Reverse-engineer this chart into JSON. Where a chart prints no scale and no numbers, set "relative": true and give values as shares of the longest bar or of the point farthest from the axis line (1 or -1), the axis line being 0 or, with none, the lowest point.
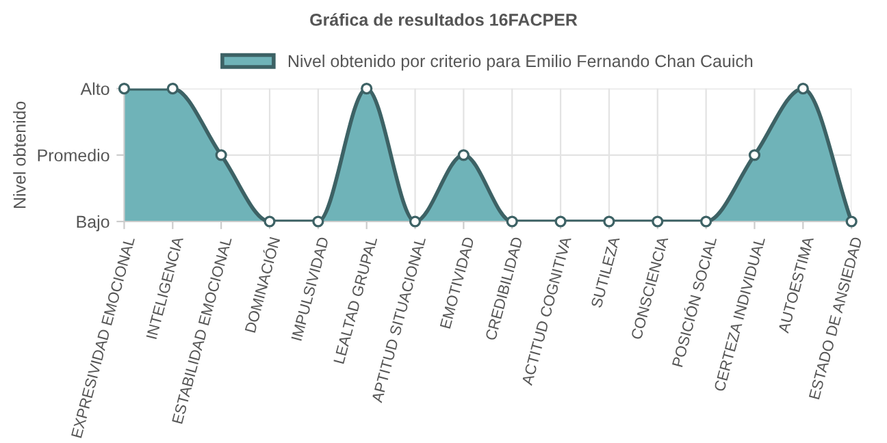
{
  "chart_data": {
    "type": "area",
    "title": "Gráfica de resultados 16FACPER",
    "ylabel": "Nivel obtenido",
    "categories": [
      "EXPRESIVIDAD EMOCIONAL",
      "INTELIGENCIA",
      "ESTABILIDAD EMOCIONAL",
      "DOMINACIÓN",
      "IMPULSIVIDAD",
      "LEALTAD GRUPAL",
      "APTITUD SITUACIONAL",
      "EMOTIVIDAD",
      "CREDIBILIDAD",
      "ACTITUD COGNITIVA",
      "SUTILEZA",
      "CONSCIENCIA",
      "POSICIÓN SOCIAL",
      "CERTEZA INDIVIDUAL",
      "AUTOESTIMA",
      "ESTADO DE ANSIEDAD"
    ],
    "series": [
      {
        "name": "Nivel obtenido por criterio para Emilio Fernando Chan Cauich",
        "color": "#6fb3b8",
        "values": [
          1,
          1,
          0.5,
          0,
          0,
          1,
          0,
          0.5,
          0,
          0,
          0,
          0,
          0,
          0.5,
          1,
          0
        ]
      }
    ],
    "relative": true,
    "y_categories": [
      "Alto",
      "Promedio",
      "Bajo"
    ],
    "grid": true,
    "legend": "top",
    "marker": "circle",
    "line_style": "solid"
  }
}
